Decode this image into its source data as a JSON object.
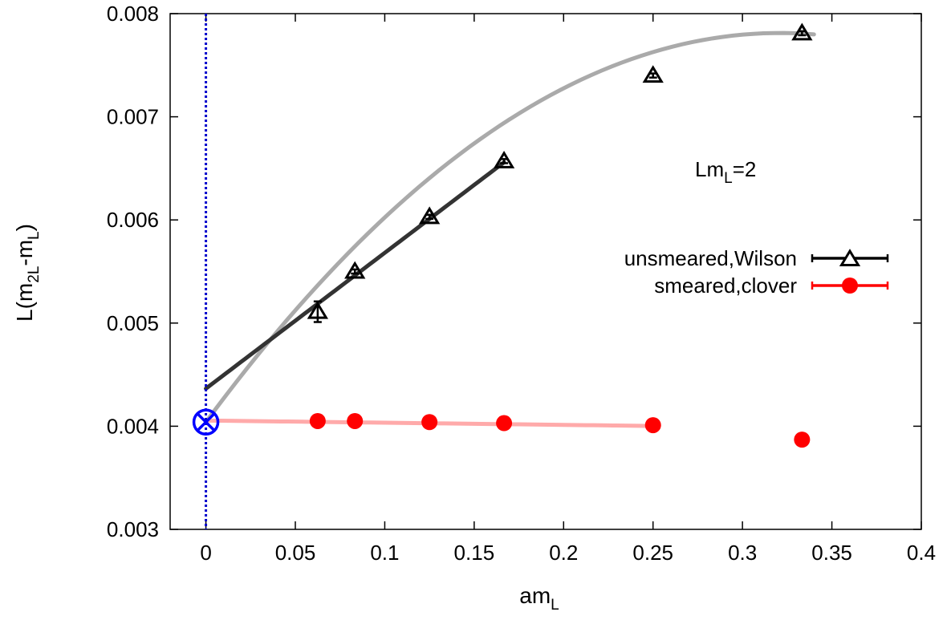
{
  "chart_data": {
    "type": "scatter",
    "xlabel": {
      "main": "am",
      "sub": "L"
    },
    "ylabel": {
      "p1": "L(m",
      "sub1": "2L",
      "p2": "-m",
      "sub2": "L",
      "p3": ")"
    },
    "xlim": [
      -0.02,
      0.4
    ],
    "ylim": [
      0.003,
      0.008
    ],
    "xticks": [
      "0",
      "0.05",
      "0.1",
      "0.15",
      "0.2",
      "0.25",
      "0.3",
      "0.35",
      "0.4"
    ],
    "xtick_values": [
      0,
      0.05,
      0.1,
      0.15,
      0.2,
      0.25,
      0.3,
      0.35,
      0.4
    ],
    "yticks": [
      "0.003",
      "0.004",
      "0.005",
      "0.006",
      "0.007",
      "0.008"
    ],
    "ytick_values": [
      0.003,
      0.004,
      0.005,
      0.006,
      0.007,
      0.008
    ],
    "annotation": {
      "main": "Lm",
      "sub": "L",
      "rest": "=2",
      "x": 0.32,
      "y": 0.00663
    },
    "legend_position": "right",
    "series": [
      {
        "name": "unsmeared,Wilson",
        "marker": "triangle",
        "color": "#000000",
        "x": [
          0.0625,
          0.0833,
          0.125,
          0.1667,
          0.25,
          0.3333
        ],
        "y": [
          0.00511,
          0.0055,
          0.00603,
          0.00657,
          0.0074,
          0.00781
        ],
        "yerr": [
          0.0001,
          2e-05,
          2e-05,
          2e-05,
          2e-05,
          2e-05
        ]
      },
      {
        "name": "smeared,clover",
        "marker": "circle",
        "color": "#ff0000",
        "x": [
          0.0625,
          0.0833,
          0.125,
          0.1667,
          0.25,
          0.3333
        ],
        "y": [
          0.00405,
          0.00405,
          0.00404,
          0.00403,
          0.00401,
          0.00387
        ],
        "yerr": [
          1e-05,
          1e-05,
          1e-05,
          1e-05,
          1e-05,
          1e-05
        ]
      }
    ],
    "fits": [
      {
        "color": "#aaaaaa",
        "x_range": [
          0,
          0.34
        ],
        "coeffs": [
          0.00404,
          0.0235,
          -0.0366
        ]
      },
      {
        "color": "#333333",
        "x_range": [
          0,
          0.1667
        ],
        "coeffs": [
          0.004365,
          0.01316,
          0
        ]
      },
      {
        "color": "#ffaaaa",
        "x_range": [
          0,
          0.25
        ],
        "coeffs": [
          0.004055,
          -0.00021,
          0
        ]
      }
    ],
    "extrapolation": {
      "x": 0,
      "y": 0.00404,
      "color": "#0000ff",
      "vline_color": "#0000cc"
    }
  }
}
